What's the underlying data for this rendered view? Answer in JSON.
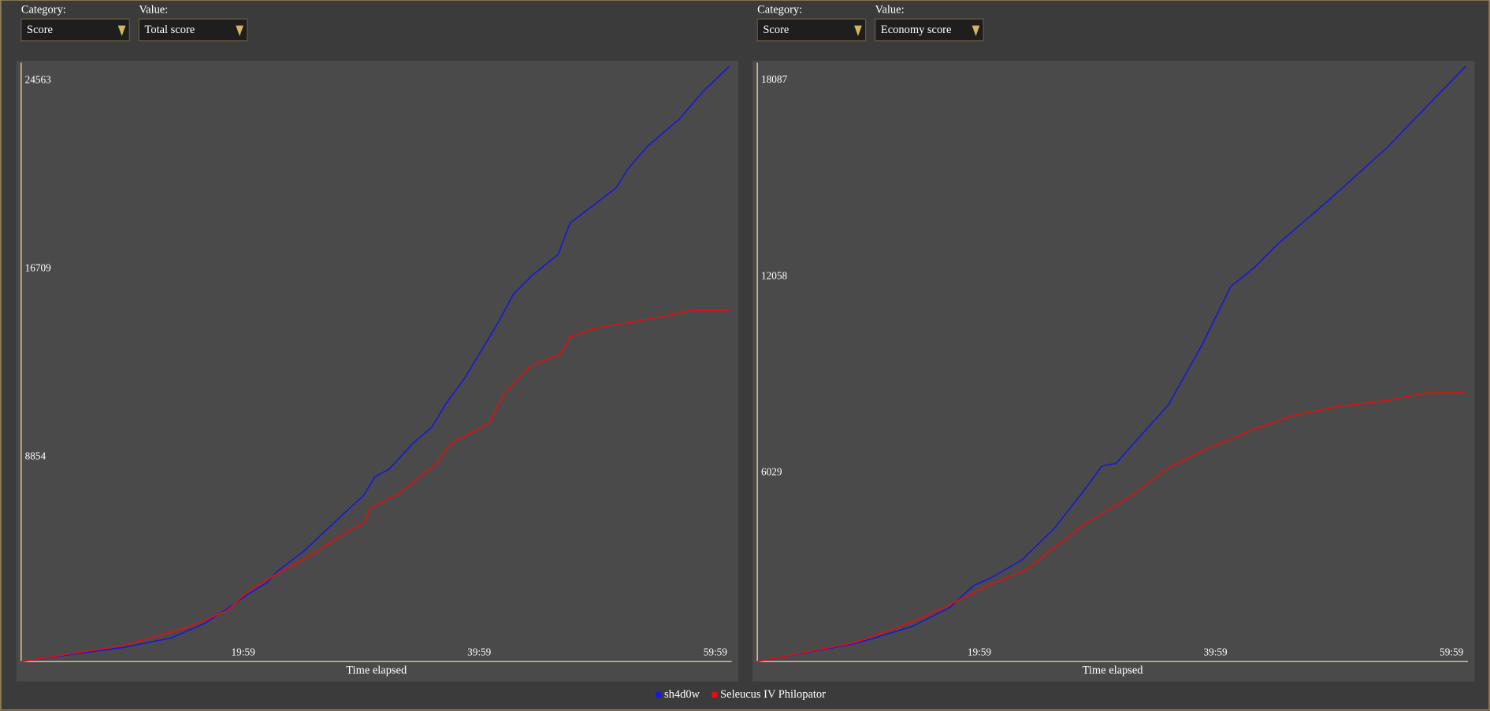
{
  "panels": [
    {
      "category_label": "Category:",
      "category": "Score",
      "value_label": "Value:",
      "value": "Total score"
    },
    {
      "category_label": "Category:",
      "category": "Score",
      "value_label": "Value:",
      "value": "Economy score"
    }
  ],
  "chart_data": [
    {
      "type": "line",
      "xlabel": "Time elapsed",
      "xlim": [
        0,
        60.2
      ],
      "xticks": [
        {
          "value": 19.98,
          "label": "19:59"
        },
        {
          "value": 39.98,
          "label": "39:59"
        },
        {
          "value": 59.98,
          "label": "59:59"
        }
      ],
      "ylim": [
        0,
        25000
      ],
      "yticks": [
        8854,
        16709,
        24563
      ],
      "series": [
        {
          "name": "sh4d0w",
          "color": "#1a1ad0",
          "x": [
            0,
            3.9,
            8.7,
            12.7,
            15.5,
            17.5,
            19.1,
            20.8,
            21.6,
            24.0,
            26.4,
            29.0,
            30.0,
            31.2,
            33.2,
            34.8,
            36.0,
            37.6,
            40.5,
            41.7,
            43.3,
            45.5,
            46.5,
            50.4,
            51.4,
            53.0,
            55.8,
            57.8,
            60.0
          ],
          "values": [
            0,
            277,
            594,
            990,
            1585,
            2219,
            2773,
            3288,
            3724,
            4635,
            5745,
            6933,
            7726,
            8043,
            9113,
            9786,
            10777,
            11846,
            14223,
            15333,
            16125,
            16997,
            18304,
            19770,
            20563,
            21474,
            22663,
            23811,
            24842
          ]
        },
        {
          "name": "Seleucus IV Philopator",
          "color": "#dd1111",
          "x": [
            0,
            8.7,
            14.3,
            17.5,
            19.1,
            21.6,
            24.8,
            27.6,
            29.0,
            29.6,
            32.0,
            35.2,
            36.4,
            38.0,
            39.7,
            40.9,
            43.2,
            45.7,
            46.5,
            48.5,
            51.4,
            54.5,
            56.9,
            60.0
          ],
          "values": [
            0,
            674,
            1466,
            2139,
            2892,
            3645,
            4517,
            5428,
            5785,
            6418,
            7013,
            8281,
            9113,
            9509,
            9984,
            11173,
            12361,
            12837,
            13550,
            13906,
            14144,
            14421,
            14659,
            14659
          ]
        }
      ]
    },
    {
      "type": "line",
      "xlabel": "Time elapsed",
      "xlim": [
        0,
        60.2
      ],
      "xticks": [
        {
          "value": 19.98,
          "label": "19:59"
        },
        {
          "value": 39.98,
          "label": "39:59"
        },
        {
          "value": 59.98,
          "label": "59:59"
        }
      ],
      "ylim": [
        0,
        18400
      ],
      "yticks": [
        6029,
        12058,
        18087
      ],
      "series": [
        {
          "color": "#1a1ad0",
          "x": [
            0,
            3.9,
            8.3,
            13.1,
            16.3,
            18.3,
            19.9,
            22.4,
            25.2,
            27.6,
            29.2,
            30.4,
            32.4,
            34.8,
            37.6,
            40.1,
            42.1,
            44.1,
            48.5,
            53.3,
            60.0
          ],
          "values": [
            0,
            262,
            554,
            1079,
            1662,
            2333,
            2596,
            3120,
            4112,
            5220,
            6008,
            6095,
            6912,
            7874,
            9682,
            11519,
            12103,
            12832,
            14202,
            15777,
            18285
          ]
        },
        {
          "color": "#dd1111",
          "x": [
            0,
            8.3,
            13.1,
            16.3,
            19.5,
            22.8,
            27.6,
            31.6,
            34.8,
            38.0,
            42.1,
            45.3,
            49.3,
            53.3,
            56.6,
            60.0
          ],
          "values": [
            0,
            583,
            1225,
            1750,
            2333,
            2829,
            4199,
            5074,
            5949,
            6533,
            7145,
            7553,
            7845,
            8020,
            8253,
            8253
          ]
        }
      ]
    }
  ]
}
